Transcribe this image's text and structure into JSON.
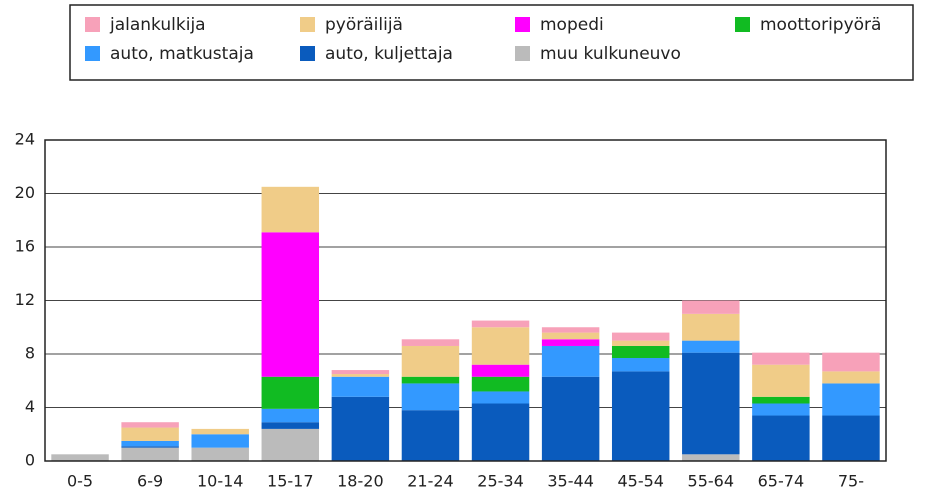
{
  "chart_data": {
    "type": "stacked-bar",
    "categories": [
      "0-5",
      "6-9",
      "10-14",
      "15-17",
      "18-20",
      "21-24",
      "25-34",
      "35-44",
      "45-54",
      "55-64",
      "65-74",
      "75-"
    ],
    "series": [
      {
        "name": "jalankulkija",
        "color": "#f7a1b9",
        "values": [
          0,
          0.4,
          0,
          0,
          0.3,
          0.5,
          0.5,
          0.4,
          0.6,
          1.0,
          0.9,
          1.4
        ]
      },
      {
        "name": "pyöräilijä",
        "color": "#f0cc88",
        "values": [
          0,
          1.0,
          0.4,
          3.4,
          0.2,
          2.3,
          2.8,
          0.5,
          0.4,
          2.0,
          2.4,
          0.9
        ]
      },
      {
        "name": "mopedi",
        "color": "#ff00ff",
        "values": [
          0,
          0,
          0,
          10.8,
          0,
          0,
          0.9,
          0.5,
          0,
          0,
          0,
          0
        ]
      },
      {
        "name": "moottoripyörä",
        "color": "#11bb22",
        "values": [
          0,
          0,
          0,
          2.4,
          0,
          0.5,
          1.1,
          0,
          0.9,
          0,
          0.5,
          0
        ]
      },
      {
        "name": "auto, matkustaja",
        "color": "#3399ff",
        "values": [
          0,
          0.4,
          1.0,
          1.0,
          1.5,
          2.0,
          0.9,
          2.3,
          1.0,
          0.9,
          0.9,
          2.4
        ]
      },
      {
        "name": "auto, kuljettaja",
        "color": "#0a5bbd",
        "values": [
          0,
          0.1,
          0,
          0.5,
          4.8,
          3.8,
          4.3,
          6.3,
          6.7,
          7.6,
          3.4,
          3.4
        ]
      },
      {
        "name": "muu kulkuneuvo",
        "color": "#bbbbbb",
        "values": [
          0.5,
          1.0,
          1.0,
          2.4,
          0,
          0,
          0,
          0,
          0,
          0.5,
          0,
          0
        ]
      }
    ],
    "ylim": [
      0,
      24
    ],
    "yticks": [
      0,
      4,
      8,
      12,
      16,
      20,
      24
    ],
    "grid": true
  }
}
